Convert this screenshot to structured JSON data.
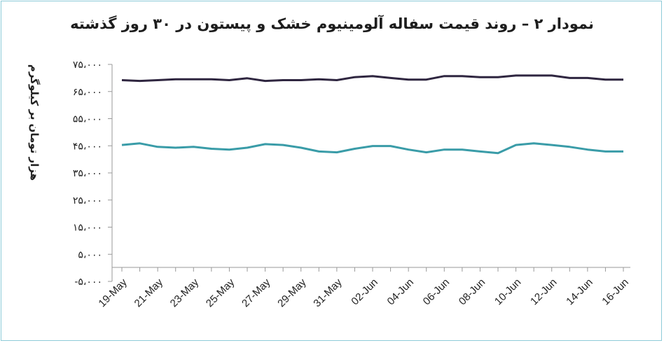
{
  "chart_data": {
    "type": "line",
    "title": "نمودار ۲ – روند قیمت سفاله آلومینیوم خشک و پیستون در ۳۰ روز گذشته",
    "xlabel": "",
    "ylabel": "هزار تومان بر کیلوگرم",
    "ylim": [
      -5000,
      75000
    ],
    "grid": false,
    "y_ticks": [
      {
        "value": 75000,
        "label": "۷۵،۰۰۰"
      },
      {
        "value": 65000,
        "label": "۶۵،۰۰۰"
      },
      {
        "value": 55000,
        "label": "۵۵،۰۰۰"
      },
      {
        "value": 45000,
        "label": "۴۵،۰۰۰"
      },
      {
        "value": 35000,
        "label": "۳۵،۰۰۰"
      },
      {
        "value": 25000,
        "label": "۲۵،۰۰۰"
      },
      {
        "value": 15000,
        "label": "۱۵،۰۰۰"
      },
      {
        "value": 5000,
        "label": "۵،۰۰۰"
      },
      {
        "value": -5000,
        "label": "-۵،۰۰۰"
      }
    ],
    "x": [
      "19-May",
      "20-May",
      "21-May",
      "22-May",
      "23-May",
      "24-May",
      "25-May",
      "26-May",
      "27-May",
      "28-May",
      "29-May",
      "30-May",
      "31-May",
      "01-Jun",
      "02-Jun",
      "03-Jun",
      "04-Jun",
      "05-Jun",
      "06-Jun",
      "07-Jun",
      "08-Jun",
      "09-Jun",
      "10-Jun",
      "11-Jun",
      "12-Jun",
      "13-Jun",
      "14-Jun",
      "15-Jun",
      "16-Jun"
    ],
    "x_tick_labels": [
      "19-May",
      "21-May",
      "23-May",
      "25-May",
      "27-May",
      "29-May",
      "31-May",
      "02-Jun",
      "04-Jun",
      "06-Jun",
      "08-Jun",
      "10-Jun",
      "12-Jun",
      "14-Jun",
      "16-Jun"
    ],
    "series": [
      {
        "color": "#2f2640",
        "values": [
          69200,
          68900,
          69200,
          69500,
          69500,
          69500,
          69200,
          69900,
          68900,
          69200,
          69200,
          69500,
          69200,
          70300,
          70700,
          70000,
          69400,
          69400,
          70700,
          70700,
          70300,
          70300,
          70900,
          70900,
          70900,
          70000,
          70000,
          69400,
          69400
        ]
      },
      {
        "color": "#3a9ca8",
        "values": [
          45300,
          45900,
          44600,
          44300,
          44600,
          43900,
          43600,
          44300,
          45600,
          45300,
          44300,
          42900,
          42600,
          43900,
          44900,
          44900,
          43600,
          42600,
          43600,
          43600,
          42900,
          42300,
          45300,
          45900,
          45300,
          44600,
          43600,
          42900,
          42900
        ]
      }
    ]
  }
}
